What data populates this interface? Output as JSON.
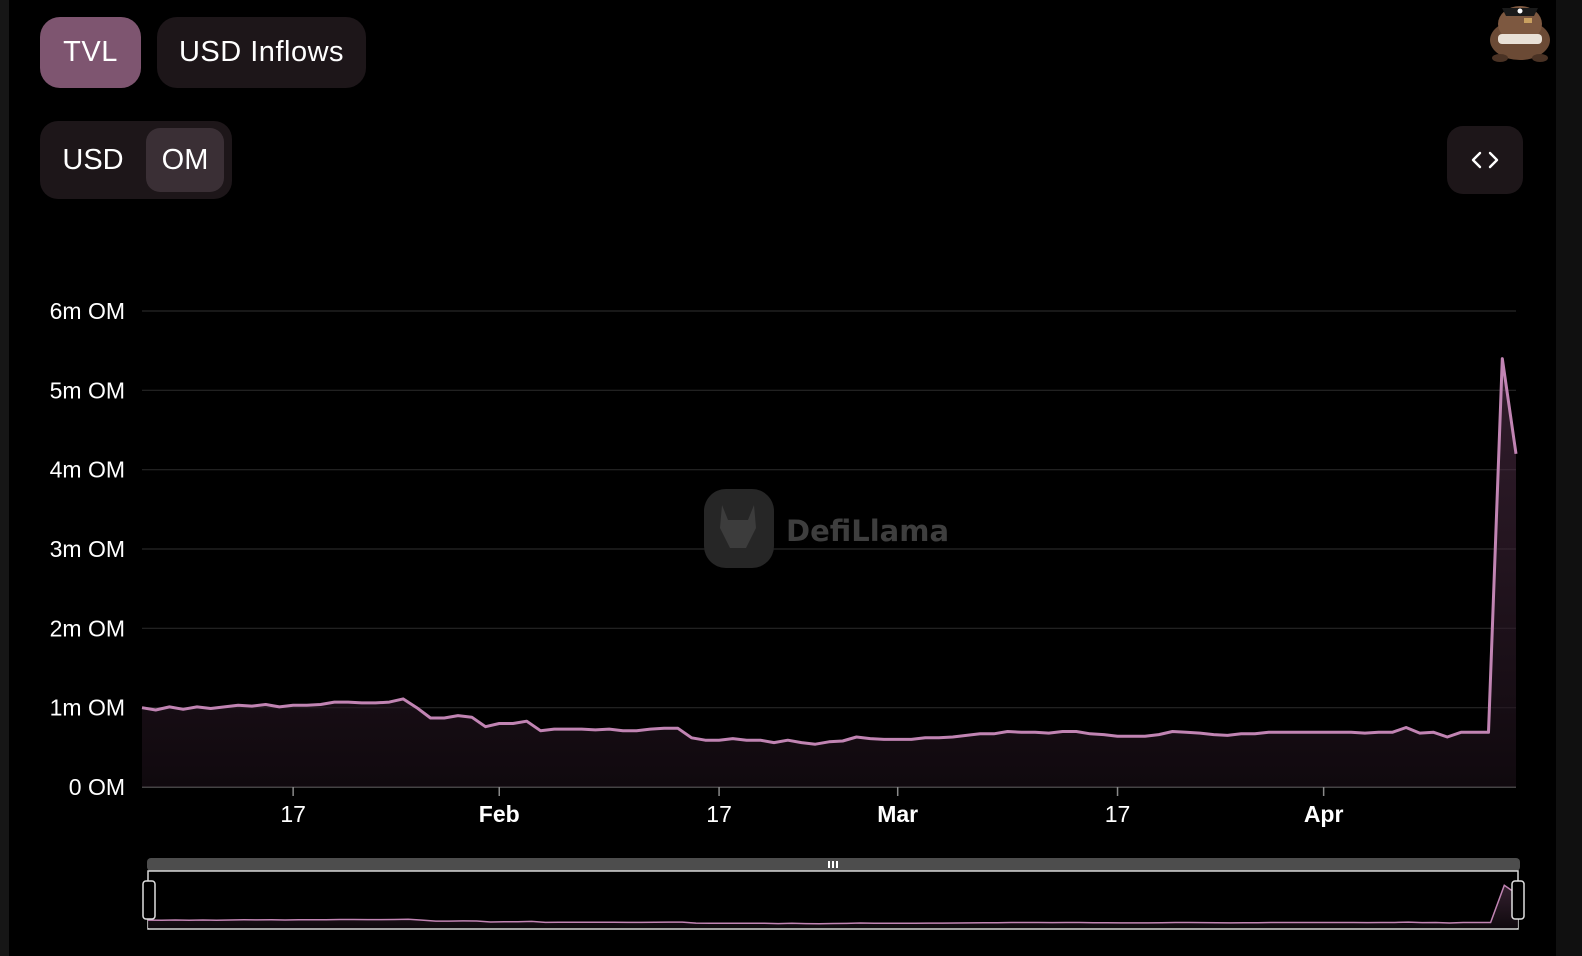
{
  "tabs": [
    {
      "label": "TVL",
      "active": true
    },
    {
      "label": "USD Inflows",
      "active": false
    }
  ],
  "denomination": {
    "options": [
      "USD",
      "OM"
    ],
    "selected": "OM"
  },
  "embed_button_icon": "code-brackets-icon",
  "avatar_icon": "pirate-llama-avatar-icon",
  "watermark": {
    "text": "DefiLlama"
  },
  "colors": {
    "background": "#000000",
    "accent": "#7e5570",
    "line": "#c184b3",
    "panel": "#1d1619"
  },
  "chart_data": {
    "type": "area",
    "ylim": [
      0,
      6000000
    ],
    "yticks": [
      {
        "value": 0,
        "label": "0 OM"
      },
      {
        "value": 1000000,
        "label": "1m OM"
      },
      {
        "value": 2000000,
        "label": "2m OM"
      },
      {
        "value": 3000000,
        "label": "3m OM"
      },
      {
        "value": 4000000,
        "label": "4m OM"
      },
      {
        "value": 5000000,
        "label": "5m OM"
      },
      {
        "value": 6000000,
        "label": "6m OM"
      }
    ],
    "xrange": [
      "2024-01-06",
      "2024-04-15"
    ],
    "xticks": [
      {
        "date": "2024-01-17",
        "label": "17",
        "major": false
      },
      {
        "date": "2024-02-01",
        "label": "Feb",
        "major": true
      },
      {
        "date": "2024-02-17",
        "label": "17",
        "major": false
      },
      {
        "date": "2024-03-01",
        "label": "Mar",
        "major": true
      },
      {
        "date": "2024-03-17",
        "label": "17",
        "major": false
      },
      {
        "date": "2024-04-01",
        "label": "Apr",
        "major": true
      }
    ],
    "grid": true,
    "series": [
      {
        "points": [
          [
            "2024-01-06",
            1000000
          ],
          [
            "2024-01-07",
            970000
          ],
          [
            "2024-01-08",
            1010000
          ],
          [
            "2024-01-09",
            980000
          ],
          [
            "2024-01-10",
            1010000
          ],
          [
            "2024-01-11",
            990000
          ],
          [
            "2024-01-12",
            1010000
          ],
          [
            "2024-01-13",
            1030000
          ],
          [
            "2024-01-14",
            1020000
          ],
          [
            "2024-01-15",
            1040000
          ],
          [
            "2024-01-16",
            1010000
          ],
          [
            "2024-01-17",
            1030000
          ],
          [
            "2024-01-18",
            1030000
          ],
          [
            "2024-01-19",
            1040000
          ],
          [
            "2024-01-20",
            1070000
          ],
          [
            "2024-01-21",
            1070000
          ],
          [
            "2024-01-22",
            1060000
          ],
          [
            "2024-01-23",
            1060000
          ],
          [
            "2024-01-24",
            1070000
          ],
          [
            "2024-01-25",
            1110000
          ],
          [
            "2024-01-26",
            1000000
          ],
          [
            "2024-01-27",
            870000
          ],
          [
            "2024-01-28",
            870000
          ],
          [
            "2024-01-29",
            900000
          ],
          [
            "2024-01-30",
            880000
          ],
          [
            "2024-01-31",
            760000
          ],
          [
            "2024-02-01",
            800000
          ],
          [
            "2024-02-02",
            800000
          ],
          [
            "2024-02-03",
            830000
          ],
          [
            "2024-02-04",
            710000
          ],
          [
            "2024-02-05",
            730000
          ],
          [
            "2024-02-06",
            730000
          ],
          [
            "2024-02-07",
            730000
          ],
          [
            "2024-02-08",
            720000
          ],
          [
            "2024-02-09",
            730000
          ],
          [
            "2024-02-10",
            710000
          ],
          [
            "2024-02-11",
            710000
          ],
          [
            "2024-02-12",
            730000
          ],
          [
            "2024-02-13",
            740000
          ],
          [
            "2024-02-14",
            740000
          ],
          [
            "2024-02-15",
            620000
          ],
          [
            "2024-02-16",
            590000
          ],
          [
            "2024-02-17",
            590000
          ],
          [
            "2024-02-18",
            610000
          ],
          [
            "2024-02-19",
            590000
          ],
          [
            "2024-02-20",
            590000
          ],
          [
            "2024-02-21",
            560000
          ],
          [
            "2024-02-22",
            590000
          ],
          [
            "2024-02-23",
            560000
          ],
          [
            "2024-02-24",
            540000
          ],
          [
            "2024-02-25",
            570000
          ],
          [
            "2024-02-26",
            580000
          ],
          [
            "2024-02-27",
            630000
          ],
          [
            "2024-02-28",
            610000
          ],
          [
            "2024-02-29",
            600000
          ],
          [
            "2024-03-01",
            600000
          ],
          [
            "2024-03-02",
            600000
          ],
          [
            "2024-03-03",
            620000
          ],
          [
            "2024-03-04",
            620000
          ],
          [
            "2024-03-05",
            630000
          ],
          [
            "2024-03-06",
            650000
          ],
          [
            "2024-03-07",
            670000
          ],
          [
            "2024-03-08",
            670000
          ],
          [
            "2024-03-09",
            700000
          ],
          [
            "2024-03-10",
            690000
          ],
          [
            "2024-03-11",
            690000
          ],
          [
            "2024-03-12",
            680000
          ],
          [
            "2024-03-13",
            700000
          ],
          [
            "2024-03-14",
            700000
          ],
          [
            "2024-03-15",
            670000
          ],
          [
            "2024-03-16",
            660000
          ],
          [
            "2024-03-17",
            640000
          ],
          [
            "2024-03-18",
            640000
          ],
          [
            "2024-03-19",
            640000
          ],
          [
            "2024-03-20",
            660000
          ],
          [
            "2024-03-21",
            700000
          ],
          [
            "2024-03-22",
            690000
          ],
          [
            "2024-03-23",
            680000
          ],
          [
            "2024-03-24",
            660000
          ],
          [
            "2024-03-25",
            650000
          ],
          [
            "2024-03-26",
            670000
          ],
          [
            "2024-03-27",
            670000
          ],
          [
            "2024-03-28",
            690000
          ],
          [
            "2024-03-29",
            690000
          ],
          [
            "2024-03-30",
            690000
          ],
          [
            "2024-03-31",
            690000
          ],
          [
            "2024-04-01",
            690000
          ],
          [
            "2024-04-02",
            690000
          ],
          [
            "2024-04-03",
            690000
          ],
          [
            "2024-04-04",
            680000
          ],
          [
            "2024-04-05",
            690000
          ],
          [
            "2024-04-06",
            690000
          ],
          [
            "2024-04-07",
            750000
          ],
          [
            "2024-04-08",
            680000
          ],
          [
            "2024-04-09",
            690000
          ],
          [
            "2024-04-10",
            630000
          ],
          [
            "2024-04-11",
            690000
          ],
          [
            "2024-04-12",
            690000
          ],
          [
            "2024-04-13",
            690000
          ],
          [
            "2024-04-14",
            5400000
          ],
          [
            "2024-04-15",
            4200000
          ]
        ]
      }
    ]
  }
}
